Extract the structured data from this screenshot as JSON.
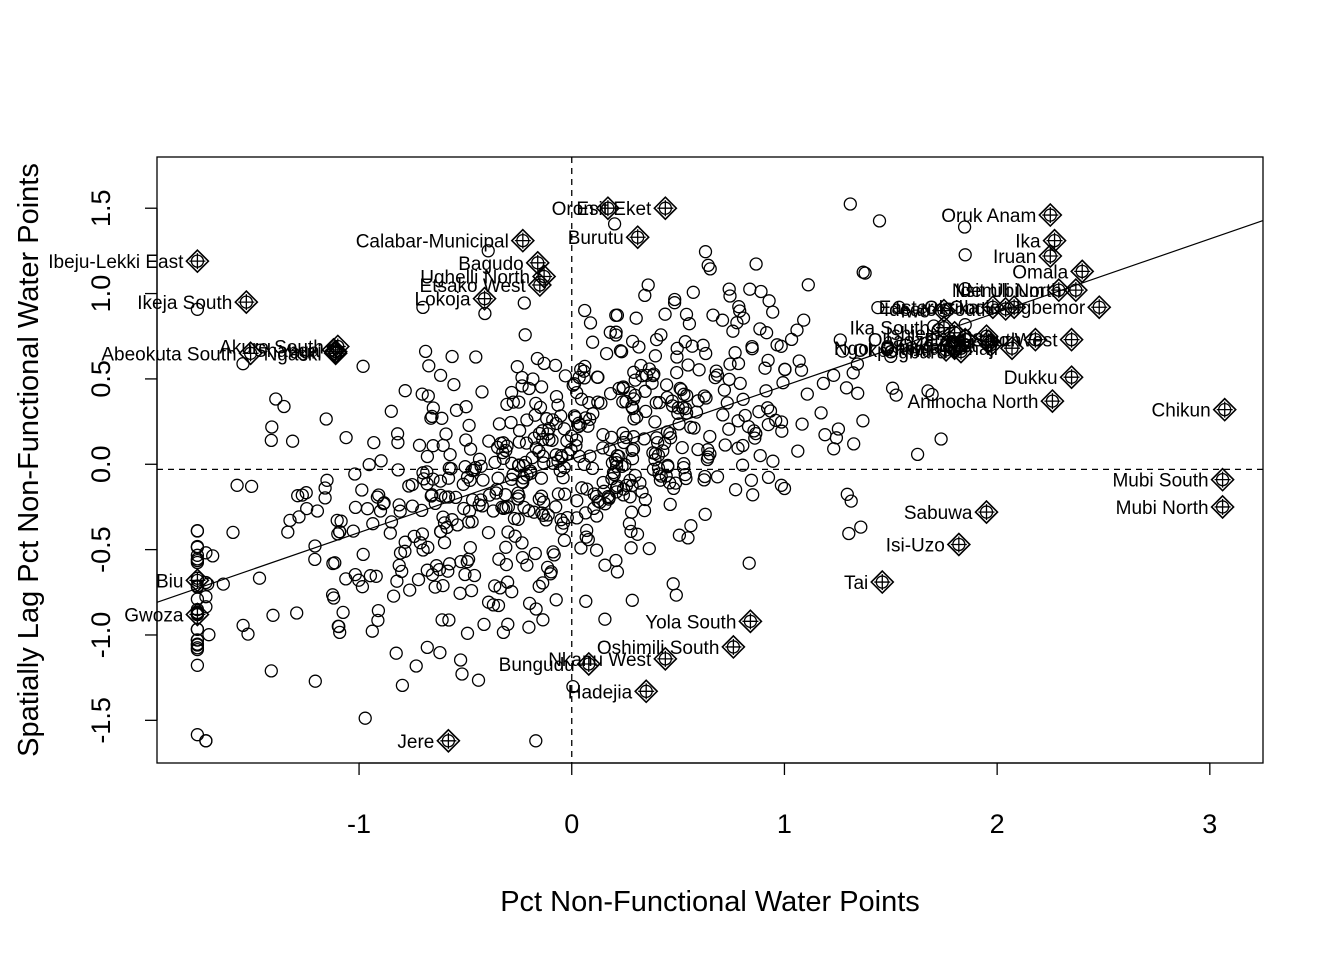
{
  "chart_data": {
    "type": "scatter",
    "title": "",
    "xlabel": "Pct Non-Functional Water Points",
    "ylabel": "Spatially Lag Pct Non-Functional Water Points",
    "xlim": [
      -1.95,
      3.25
    ],
    "ylim": [
      -1.75,
      1.8
    ],
    "x_ticks": [
      -1,
      0,
      1,
      2,
      3
    ],
    "y_ticks": [
      -1.5,
      -1.0,
      -0.5,
      0.0,
      0.5,
      1.0,
      1.5
    ],
    "x_tick_labels": [
      "-1",
      "0",
      "1",
      "2",
      "3"
    ],
    "y_tick_labels": [
      "-1.5",
      "-1.0",
      "-0.5",
      "0.0",
      "0.5",
      "1.0",
      "1.5"
    ],
    "mean_lines": {
      "x": 0.0,
      "y": -0.03
    },
    "regression_line": {
      "slope": 0.43,
      "intercept": 0.03
    },
    "grid": false,
    "legend": "none",
    "labeled_points": [
      {
        "label": "Oruk Anam",
        "x": 2.25,
        "y": 1.46
      },
      {
        "label": "Ika",
        "x": 2.27,
        "y": 1.31
      },
      {
        "label": "Iruan",
        "x": 2.25,
        "y": 1.22
      },
      {
        "label": "Omala",
        "x": 2.4,
        "y": 1.13
      },
      {
        "label": "Nsit Ubium",
        "x": 2.29,
        "y": 1.02
      },
      {
        "label": "Idemili North",
        "x": 2.37,
        "y": 1.02
      },
      {
        "label": "Eastern Obolo",
        "x": 2.08,
        "y": 0.92
      },
      {
        "label": "Ideato South",
        "x": 2.04,
        "y": 0.91
      },
      {
        "label": "Okrika",
        "x": 1.98,
        "y": 0.92
      },
      {
        "label": "Iwo",
        "x": 1.75,
        "y": 0.9
      },
      {
        "label": "Igbemor",
        "x": 2.48,
        "y": 0.92
      },
      {
        "label": "Ika South",
        "x": 1.75,
        "y": 0.8
      },
      {
        "label": "Ishielu",
        "x": 1.8,
        "y": 0.77
      },
      {
        "label": "Ohaozara",
        "x": 1.85,
        "y": 0.73
      },
      {
        "label": "Ivo",
        "x": 1.95,
        "y": 0.75
      },
      {
        "label": "Obi",
        "x": 1.96,
        "y": 0.72
      },
      {
        "label": "Oyo East",
        "x": 1.97,
        "y": 0.7
      },
      {
        "label": "Ezza South",
        "x": 2.18,
        "y": 0.73
      },
      {
        "label": "Onicha",
        "x": 1.8,
        "y": 0.69
      },
      {
        "label": "Ivo West",
        "x": 2.35,
        "y": 0.73
      },
      {
        "label": "Okpokwu",
        "x": 1.76,
        "y": 0.67
      },
      {
        "label": "Ngor Okpala",
        "x": 1.8,
        "y": 0.68
      },
      {
        "label": "Ogbaru",
        "x": 1.83,
        "y": 0.66
      },
      {
        "label": "Ohaji",
        "x": 2.07,
        "y": 0.68
      },
      {
        "label": "Dukku",
        "x": 2.35,
        "y": 0.51
      },
      {
        "label": "Aninocha North",
        "x": 2.26,
        "y": 0.37
      },
      {
        "label": "Chikun",
        "x": 3.07,
        "y": 0.32
      },
      {
        "label": "Mubi South",
        "x": 3.06,
        "y": -0.09
      },
      {
        "label": "Mubi North",
        "x": 3.06,
        "y": -0.25
      },
      {
        "label": "Sabuwa",
        "x": 1.95,
        "y": -0.28
      },
      {
        "label": "Isi-Uzo",
        "x": 1.82,
        "y": -0.47
      },
      {
        "label": "Tai",
        "x": 1.46,
        "y": -0.69
      },
      {
        "label": "Oron",
        "x": 0.17,
        "y": 1.5
      },
      {
        "label": "Esit Eket",
        "x": 0.44,
        "y": 1.5
      },
      {
        "label": "Burutu",
        "x": 0.31,
        "y": 1.33
      },
      {
        "label": "Calabar-Municipal",
        "x": -0.23,
        "y": 1.31
      },
      {
        "label": "Bagudo",
        "x": -0.16,
        "y": 1.18
      },
      {
        "label": "Ughelli North",
        "x": -0.13,
        "y": 1.1
      },
      {
        "label": "Etsako West",
        "x": -0.15,
        "y": 1.05
      },
      {
        "label": "Lokoja",
        "x": -0.41,
        "y": 0.97
      },
      {
        "label": "Akure South",
        "x": -1.1,
        "y": 0.69
      },
      {
        "label": "Yauri",
        "x": -1.11,
        "y": 0.66
      },
      {
        "label": "Ngaski",
        "x": -1.11,
        "y": 0.65
      },
      {
        "label": "Shanga",
        "x": -1.12,
        "y": 0.67
      },
      {
        "label": "Abeokuta South",
        "x": -1.51,
        "y": 0.65
      },
      {
        "label": "Ibeju-Lekki East",
        "x": -1.76,
        "y": 1.19
      },
      {
        "label": "Ikeja South",
        "x": -1.53,
        "y": 0.95
      },
      {
        "label": "Biu",
        "x": -1.76,
        "y": -0.68
      },
      {
        "label": "Gwoza",
        "x": -1.76,
        "y": -0.88
      },
      {
        "label": "Yola South",
        "x": 0.84,
        "y": -0.92
      },
      {
        "label": "Oshimili South",
        "x": 0.76,
        "y": -1.07
      },
      {
        "label": "Nkanu West",
        "x": 0.44,
        "y": -1.14
      },
      {
        "label": "Bungudu",
        "x": 0.08,
        "y": -1.17
      },
      {
        "label": "Hadejia",
        "x": 0.35,
        "y": -1.33
      },
      {
        "label": "Jere",
        "x": -0.58,
        "y": -1.62
      }
    ]
  }
}
